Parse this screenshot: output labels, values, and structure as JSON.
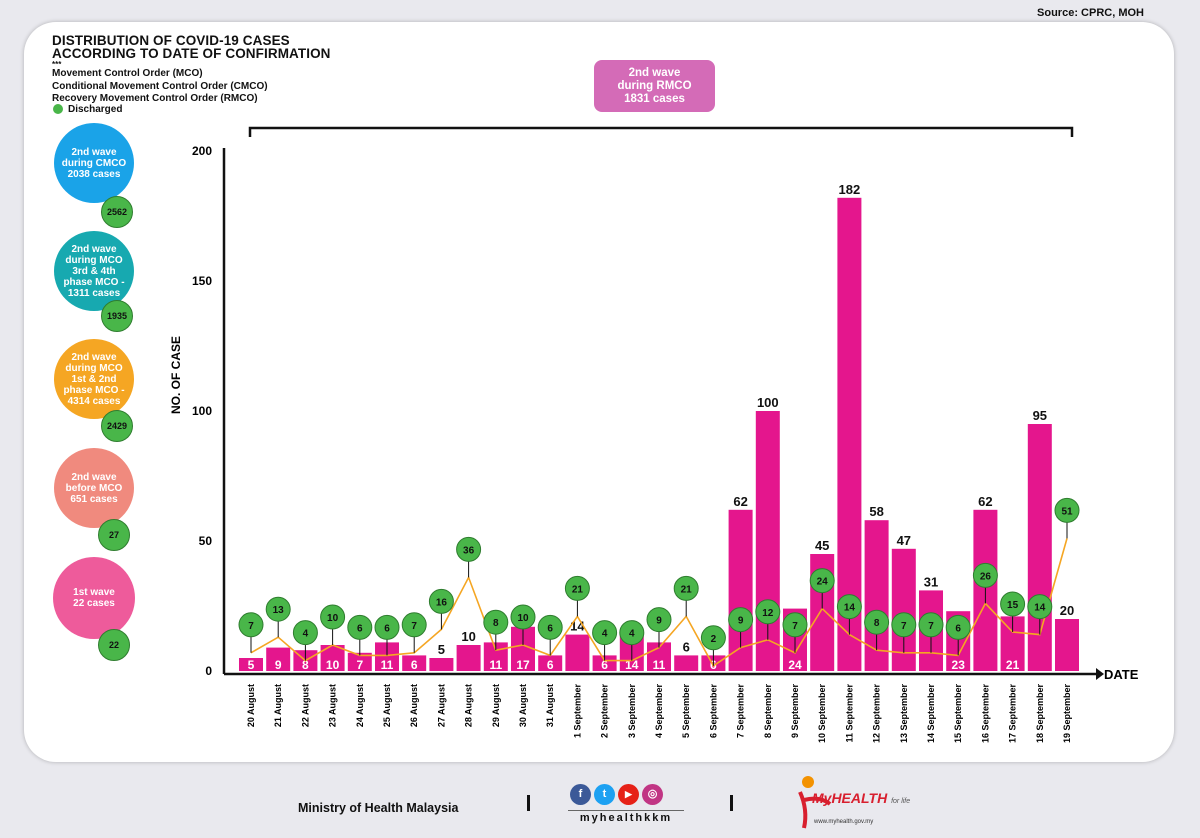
{
  "source": "Source: CPRC, MOH",
  "title": [
    "DISTRIBUTION OF COVID-19 CASES",
    "ACCORDING TO DATE OF CONFIRMATION"
  ],
  "legend_marker": "***",
  "legend_lines": [
    "Movement Control Order (MCO)",
    "Conditional Movement Control Order (CMCO)",
    "Recovery Movement Control Order (RMCO)"
  ],
  "discharged_label": "Discharged",
  "rmco_box": [
    "2nd wave",
    "during RMCO",
    "1831 cases"
  ],
  "waves": [
    {
      "lines": [
        "2nd wave",
        "during CMCO",
        "2038 cases"
      ],
      "color": "#1aa3e8",
      "discharged": "2562"
    },
    {
      "lines": [
        "2nd wave",
        "during MCO",
        "3rd & 4th",
        "phase MCO -",
        "1311 cases"
      ],
      "color": "#17a9b0",
      "discharged": "1935"
    },
    {
      "lines": [
        "2nd wave",
        "during MCO",
        "1st & 2nd",
        "phase MCO -",
        "4314 cases"
      ],
      "color": "#f5a623",
      "discharged": "2429"
    },
    {
      "lines": [
        "2nd wave",
        "before MCO",
        "651 cases"
      ],
      "color": "#f08a7e",
      "discharged": "27"
    },
    {
      "lines": [
        "1st wave",
        "22 cases"
      ],
      "color": "#ee5b9b",
      "discharged": "22"
    }
  ],
  "chart_data": {
    "type": "bar",
    "xlabel": "DATE",
    "ylabel": "NO. OF CASE",
    "ylim": [
      0,
      200
    ],
    "yticks": [
      0,
      50,
      100,
      150,
      200
    ],
    "categories": [
      "20 August",
      "21 August",
      "22 August",
      "23 August",
      "24 August",
      "25 August",
      "26 August",
      "27 August",
      "28 August",
      "29 August",
      "30 August",
      "31 August",
      "1 September",
      "2 September",
      "3 September",
      "4 September",
      "5 September",
      "6 September",
      "7 September",
      "8 September",
      "9 September",
      "10 September",
      "11 September",
      "12 September",
      "13 September",
      "14 September",
      "15 September",
      "16 September",
      "17 September",
      "18 September",
      "19 September"
    ],
    "series": [
      {
        "values": [
          5,
          9,
          8,
          10,
          7,
          11,
          6,
          5,
          10,
          11,
          17,
          6,
          14,
          6,
          14,
          11,
          6,
          6,
          62,
          100,
          24,
          45,
          182,
          58,
          47,
          31,
          23,
          62,
          21,
          95,
          20
        ],
        "color": "#e4168d"
      },
      {
        "name": "Discharged",
        "type": "line",
        "values": [
          7,
          13,
          4,
          10,
          6,
          6,
          7,
          16,
          36,
          8,
          10,
          6,
          21,
          4,
          4,
          9,
          21,
          2,
          9,
          12,
          7,
          24,
          14,
          8,
          7,
          7,
          6,
          26,
          15,
          14,
          51
        ],
        "color": "#f5a623",
        "marker_color": "#49b649"
      }
    ],
    "grid": false
  },
  "footer": {
    "ministry": "Ministry of Health Malaysia",
    "social_icons": [
      "facebook-icon",
      "twitter-icon",
      "youtube-icon",
      "instagram-icon"
    ],
    "social_glyphs": [
      "f",
      "t",
      "▶",
      "◎"
    ],
    "handle": "myhealthkkm",
    "brand": "MyHEALTH",
    "brand_tag": "for life",
    "brand_url": "www.myhealth.gov.my"
  }
}
